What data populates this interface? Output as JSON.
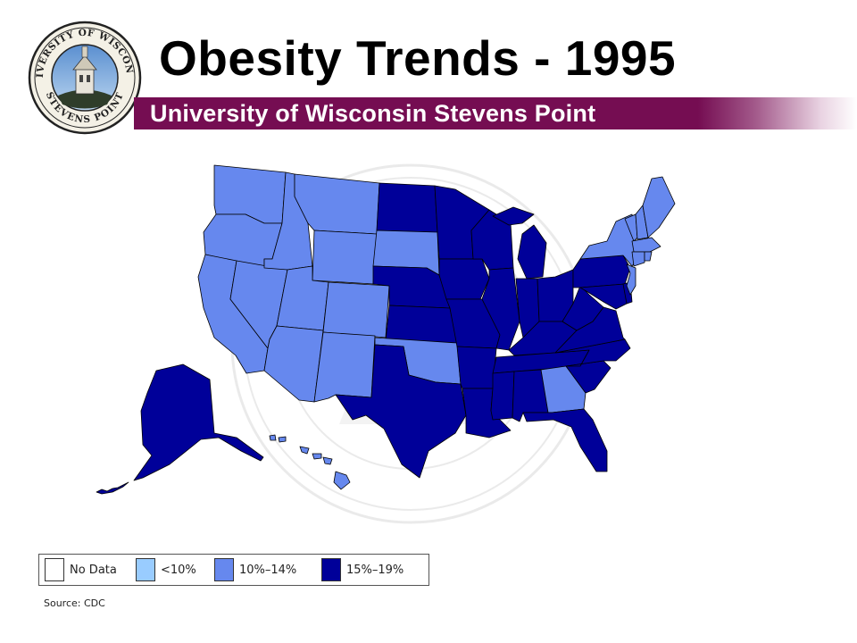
{
  "title": "Obesity Trends - 1995",
  "subtitle": "University of Wisconsin Stevens Point",
  "seal": {
    "top_text": "UNIVERSITY OF WISCONSIN",
    "bottom_text": "STEVENS POINT"
  },
  "colors": {
    "no_data": "#ffffff",
    "lt10": "#99ccff",
    "r10_14": "#6688ee",
    "r15_19": "#000099",
    "banner": "#750d52"
  },
  "legend": [
    {
      "label": "No Data",
      "color_key": "no_data"
    },
    {
      "label": "<10%",
      "color_key": "lt10"
    },
    {
      "label": "10%–14%",
      "color_key": "r10_14"
    },
    {
      "label": "15%–19%",
      "color_key": "r15_19"
    }
  ],
  "source": "Source: CDC",
  "states": {
    "WA": "r10_14",
    "OR": "r10_14",
    "CA": "r10_14",
    "NV": "r10_14",
    "ID": "r10_14",
    "MT": "r10_14",
    "WY": "r10_14",
    "UT": "r10_14",
    "AZ": "r10_14",
    "CO": "r10_14",
    "NM": "r10_14",
    "SD": "r10_14",
    "OK": "r10_14",
    "GA": "r10_14",
    "HI": "r10_14",
    "NY": "r10_14",
    "VT": "r10_14",
    "NH": "r10_14",
    "ME": "r10_14",
    "MA": "r10_14",
    "CT": "r10_14",
    "RI": "r10_14",
    "NJ": "r10_14",
    "ND": "r15_19",
    "NE": "r15_19",
    "KS": "r15_19",
    "TX": "r15_19",
    "MN": "r15_19",
    "IA": "r15_19",
    "MO": "r15_19",
    "AR": "r15_19",
    "LA": "r15_19",
    "WI": "r15_19",
    "IL": "r15_19",
    "MS": "r15_19",
    "MI": "r15_19",
    "IN": "r15_19",
    "KY": "r15_19",
    "TN": "r15_19",
    "AL": "r15_19",
    "OH": "r15_19",
    "WV": "r15_19",
    "PA": "r15_19",
    "VA": "r15_19",
    "NC": "r15_19",
    "SC": "r15_19",
    "FL": "r15_19",
    "MD": "r15_19",
    "DE": "r15_19",
    "AK": "r15_19"
  }
}
